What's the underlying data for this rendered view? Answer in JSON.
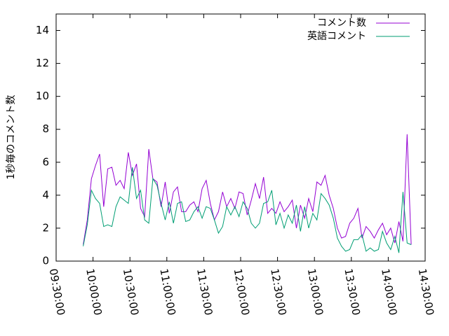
{
  "chart_data": {
    "type": "line",
    "y_label": "1秒毎のコメント数",
    "x": [
      "09:52:00",
      "09:55:20",
      "09:58:40",
      "10:02:00",
      "10:05:20",
      "10:08:40",
      "10:12:00",
      "10:15:20",
      "10:18:40",
      "10:22:00",
      "10:25:20",
      "10:28:40",
      "10:32:00",
      "10:35:20",
      "10:38:40",
      "10:42:00",
      "10:45:20",
      "10:48:40",
      "10:52:00",
      "10:55:20",
      "10:58:40",
      "11:02:00",
      "11:05:20",
      "11:08:40",
      "11:12:00",
      "11:15:20",
      "11:18:40",
      "11:22:00",
      "11:25:20",
      "11:28:40",
      "11:32:00",
      "11:35:20",
      "11:38:40",
      "11:42:00",
      "11:45:20",
      "11:48:40",
      "11:52:00",
      "11:55:20",
      "11:58:40",
      "12:02:00",
      "12:05:20",
      "12:08:40",
      "12:12:00",
      "12:15:20",
      "12:18:40",
      "12:22:00",
      "12:25:20",
      "12:28:40",
      "12:32:00",
      "12:35:20",
      "12:38:40",
      "12:42:00",
      "12:45:20",
      "12:48:40",
      "12:52:00",
      "12:55:20",
      "12:58:40",
      "13:02:00",
      "13:05:20",
      "13:08:40",
      "13:12:00",
      "13:15:20",
      "13:18:40",
      "13:22:00",
      "13:25:20",
      "13:28:40",
      "13:32:00",
      "13:35:20",
      "13:38:40",
      "13:42:00",
      "13:45:20",
      "13:48:40",
      "13:52:00",
      "13:55:20",
      "13:58:40",
      "14:02:00",
      "14:05:20",
      "14:08:40",
      "14:12:00",
      "14:15:20",
      "14:18:40"
    ],
    "series": [
      {
        "name": "コメント数",
        "color": "#9400d3",
        "values": [
          1.0,
          2.5,
          5.0,
          5.8,
          6.5,
          3.3,
          5.6,
          5.7,
          4.6,
          4.9,
          4.4,
          6.6,
          5.2,
          5.9,
          3.2,
          2.7,
          6.8,
          5.0,
          4.8,
          3.3,
          4.8,
          2.9,
          4.2,
          4.5,
          3.0,
          3.0,
          3.4,
          3.6,
          3.0,
          4.4,
          4.9,
          3.5,
          2.5,
          3.0,
          4.2,
          3.3,
          3.8,
          3.2,
          4.2,
          4.1,
          2.8,
          3.7,
          4.7,
          3.8,
          5.1,
          2.9,
          3.2,
          2.9,
          3.6,
          3.0,
          3.3,
          3.7,
          2.0,
          3.4,
          2.6,
          3.8,
          3.0,
          4.8,
          4.6,
          5.2,
          4.0,
          3.2,
          2.0,
          1.4,
          1.5,
          2.3,
          2.6,
          3.2,
          1.4,
          2.1,
          1.8,
          1.4,
          1.9,
          2.3,
          1.6,
          2.0,
          1.1,
          2.4,
          1.2,
          7.7,
          1.0
        ]
      },
      {
        "name": "英語コメント",
        "color": "#009e73",
        "values": [
          0.9,
          2.2,
          4.3,
          3.8,
          3.5,
          2.1,
          2.2,
          2.1,
          3.3,
          3.9,
          3.7,
          3.5,
          5.7,
          3.8,
          4.3,
          2.5,
          2.3,
          5.0,
          4.6,
          3.5,
          2.5,
          3.6,
          2.3,
          3.5,
          3.6,
          2.4,
          2.5,
          3.0,
          3.3,
          2.6,
          3.3,
          3.2,
          2.5,
          1.7,
          2.1,
          3.3,
          2.8,
          3.3,
          2.7,
          3.6,
          3.2,
          2.3,
          2.0,
          2.3,
          3.5,
          3.6,
          4.3,
          2.2,
          2.9,
          2.0,
          2.8,
          2.3,
          3.4,
          1.8,
          3.3,
          2.0,
          2.9,
          2.5,
          4.1,
          3.8,
          3.4,
          2.6,
          1.4,
          0.9,
          0.6,
          0.7,
          1.3,
          1.3,
          1.6,
          0.6,
          0.8,
          0.6,
          0.7,
          1.8,
          1.1,
          0.7,
          1.5,
          0.5,
          4.2,
          1.1,
          1.0
        ]
      }
    ],
    "xlim": [
      "09:30:00",
      "14:30:00"
    ],
    "xticks": [
      "09:30:00",
      "10:00:00",
      "10:30:00",
      "11:00:00",
      "11:30:00",
      "12:00:00",
      "12:30:00",
      "13:00:00",
      "13:30:00",
      "14:00:00",
      "14:30:00"
    ],
    "ylim": [
      0,
      15
    ],
    "yticks": [
      0,
      2,
      4,
      6,
      8,
      10,
      12,
      14
    ],
    "legend": "top-right"
  }
}
